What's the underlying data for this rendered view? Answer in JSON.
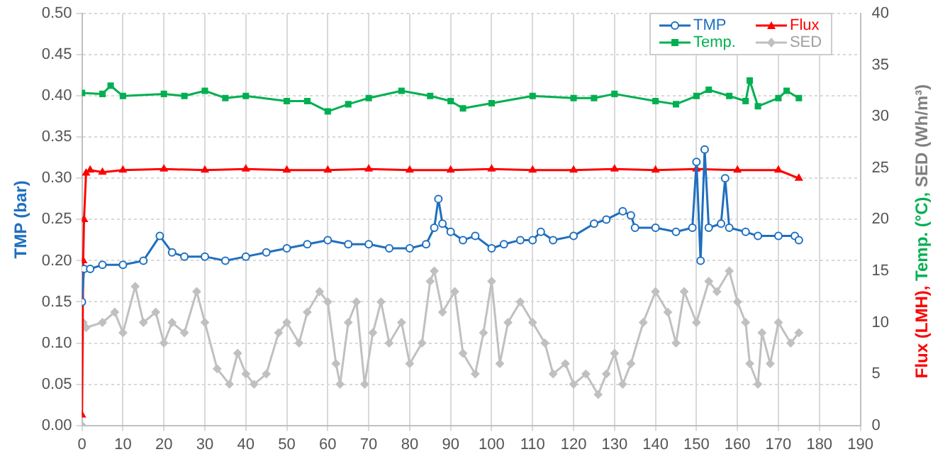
{
  "chart_data": {
    "type": "line",
    "ylabel": "TMP (bar)",
    "y2label": "Flux (LMH), Temp. (°C), SED (Wh/m³)",
    "xlim": [
      0,
      190
    ],
    "xticks": [
      0,
      10,
      20,
      30,
      40,
      50,
      60,
      70,
      80,
      90,
      100,
      110,
      120,
      130,
      140,
      150,
      160,
      170,
      180,
      190
    ],
    "ylim": [
      0,
      0.5
    ],
    "yticks": [
      {
        "value": 0,
        "label": "0.00"
      },
      0.05,
      {
        "value": 0.1,
        "label": "0.10"
      },
      0.15,
      {
        "value": 0.2,
        "label": "0.20"
      },
      0.25,
      {
        "value": 0.3,
        "label": "0.30"
      },
      0.35,
      {
        "value": 0.4,
        "label": "0.40"
      },
      0.45,
      {
        "value": 0.5,
        "label": "0.50"
      }
    ],
    "y2lim": [
      0,
      40
    ],
    "y2ticks": [
      0,
      5,
      10,
      15,
      20,
      25,
      30,
      35,
      40
    ],
    "grid": true,
    "legend": "top right",
    "series": [
      {
        "name": "TMP",
        "color": "#1f6fbf",
        "marker": "circle",
        "x": [
          0,
          0.5,
          2,
          5,
          10,
          15,
          19,
          22,
          25,
          30,
          35,
          40,
          45,
          50,
          55,
          60,
          65,
          70,
          75,
          80,
          84,
          86,
          87,
          88,
          90,
          93,
          96,
          100,
          103,
          107,
          110,
          112,
          115,
          120,
          125,
          128,
          132,
          134,
          135,
          140,
          145,
          149,
          150,
          151,
          152,
          153,
          156,
          157,
          158,
          162,
          165,
          170,
          174,
          175
        ],
        "values": [
          0.15,
          0.19,
          0.19,
          0.195,
          0.195,
          0.2,
          0.23,
          0.21,
          0.205,
          0.205,
          0.2,
          0.205,
          0.21,
          0.215,
          0.22,
          0.225,
          0.22,
          0.22,
          0.215,
          0.215,
          0.22,
          0.24,
          0.275,
          0.245,
          0.235,
          0.225,
          0.23,
          0.215,
          0.22,
          0.225,
          0.225,
          0.235,
          0.225,
          0.23,
          0.245,
          0.25,
          0.26,
          0.255,
          0.24,
          0.24,
          0.235,
          0.24,
          0.32,
          0.2,
          0.335,
          0.24,
          0.245,
          0.3,
          0.24,
          0.235,
          0.23,
          0.23,
          0.23,
          0.225
        ]
      },
      {
        "name": "Flux",
        "color": "#ff0000",
        "marker": "triangle",
        "axis": "y2",
        "x": [
          0,
          0.3,
          0.5,
          1,
          2,
          5,
          10,
          20,
          30,
          40,
          50,
          60,
          70,
          80,
          90,
          100,
          110,
          120,
          130,
          140,
          150,
          160,
          170,
          175
        ],
        "values": [
          1,
          16,
          20,
          24.5,
          24.8,
          24.6,
          24.8,
          24.9,
          24.8,
          24.9,
          24.8,
          24.8,
          24.9,
          24.8,
          24.8,
          24.9,
          24.8,
          24.8,
          24.9,
          24.8,
          24.9,
          24.8,
          24.8,
          24
        ]
      },
      {
        "name": "Temp.",
        "color": "#00b050",
        "marker": "square",
        "axis": "y2",
        "x": [
          0,
          5,
          7,
          10,
          20,
          25,
          30,
          35,
          40,
          50,
          55,
          60,
          65,
          70,
          78,
          85,
          90,
          93,
          100,
          110,
          120,
          125,
          130,
          140,
          145,
          150,
          153,
          158,
          162,
          163,
          165,
          170,
          172,
          175
        ],
        "values": [
          32.3,
          32.2,
          33,
          32,
          32.2,
          32,
          32.5,
          31.8,
          32,
          31.5,
          31.5,
          30.5,
          31.2,
          31.8,
          32.5,
          32,
          31.5,
          30.8,
          31.3,
          32,
          31.8,
          31.8,
          32.2,
          31.5,
          31.2,
          32,
          32.6,
          32,
          31.5,
          33.5,
          31,
          31.8,
          32.5,
          31.8
        ]
      },
      {
        "name": "SED",
        "color": "#c0c0c0",
        "marker": "diamond",
        "axis": "y2",
        "x": [
          0,
          0.3,
          1,
          5,
          8,
          10,
          13,
          15,
          18,
          20,
          22,
          25,
          28,
          30,
          33,
          36,
          38,
          40,
          42,
          45,
          48,
          50,
          53,
          55,
          58,
          60,
          62,
          63,
          65,
          67,
          69,
          71,
          73,
          75,
          78,
          80,
          83,
          85,
          86,
          88,
          91,
          93,
          96,
          98,
          100,
          102,
          104,
          107,
          110,
          113,
          115,
          118,
          120,
          123,
          126,
          128,
          130,
          132,
          134,
          137,
          140,
          143,
          145,
          147,
          150,
          153,
          155,
          158,
          160,
          162,
          163,
          165,
          166,
          168,
          170,
          173,
          175
        ],
        "values": [
          0,
          10,
          9.5,
          10,
          11,
          9,
          13.5,
          10,
          11,
          8,
          10,
          9,
          13,
          10,
          5.5,
          4,
          7,
          5,
          4,
          5,
          9,
          10,
          8,
          11,
          13,
          12,
          6,
          4,
          10,
          12,
          4,
          9,
          12,
          8,
          10,
          6,
          8,
          14,
          15,
          11,
          13,
          7,
          5,
          9,
          14,
          6,
          10,
          12,
          10,
          8,
          5,
          6,
          4,
          5,
          3,
          5,
          7,
          4,
          6,
          10,
          13,
          11,
          8,
          13,
          10,
          14,
          13,
          15,
          12,
          10,
          6,
          4,
          9,
          6,
          10,
          8,
          9
        ]
      }
    ]
  }
}
